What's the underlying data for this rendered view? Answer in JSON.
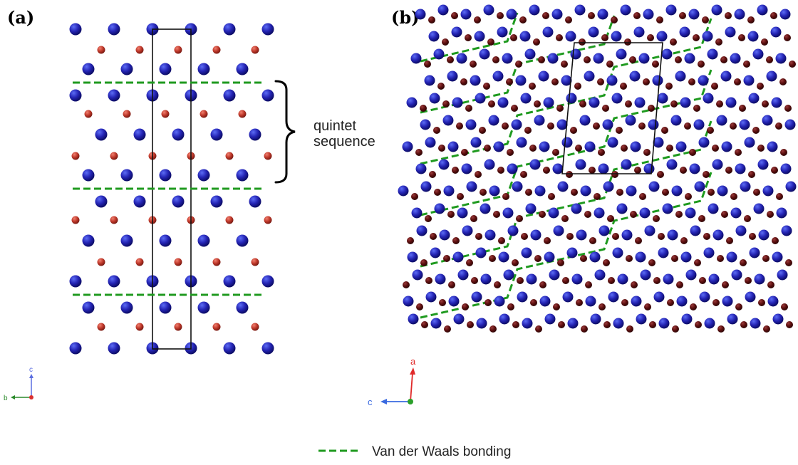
{
  "panels": [
    {
      "label": "(a)",
      "annotation": [
        "quintet",
        "sequence"
      ],
      "axes": {
        "up": "c",
        "left": "b"
      },
      "colors": {
        "large_atom": "#2424b4",
        "small_atom": "#c0392b",
        "vdw_line": "#1f9a1f",
        "cell": "#111111"
      }
    },
    {
      "label": "(b)",
      "axes": {
        "up": "a",
        "left": "c"
      },
      "colors": {
        "large_atom": "#2233cc",
        "small_atom": "#5c0f0f",
        "vdw_line": "#1f9a1f",
        "cell": "#111111"
      }
    }
  ],
  "legend": {
    "text": "Van der Waals bonding",
    "color": "#1f9a1f"
  }
}
